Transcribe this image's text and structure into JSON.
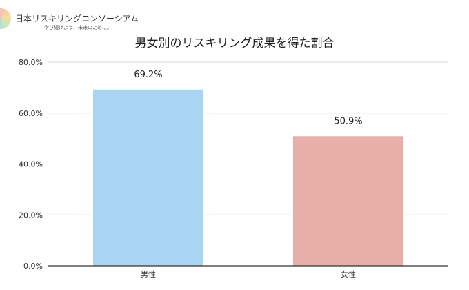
{
  "brand": {
    "name": "日本リスキリングコンソーシアム",
    "tagline": "学び続けよう、未来のために。"
  },
  "colors": {
    "male_bar": "#a9d4f2",
    "female_bar": "#e8aea8",
    "grid": "#d9d9d9",
    "axis": "#333333"
  },
  "chart_data": {
    "type": "bar",
    "title": "男女別のリスキリング成果を得た割合",
    "xlabel": "",
    "ylabel": "",
    "categories": [
      "男性",
      "女性"
    ],
    "values": [
      69.2,
      50.9
    ],
    "value_labels": [
      "69.2%",
      "50.9%"
    ],
    "ylim": [
      0,
      80
    ],
    "yticks": [
      0,
      20,
      40,
      60,
      80
    ],
    "ytick_labels": [
      "0.0%",
      "20.0%",
      "40.0%",
      "60.0%",
      "80.0%"
    ],
    "grid": true,
    "legend": "none"
  }
}
